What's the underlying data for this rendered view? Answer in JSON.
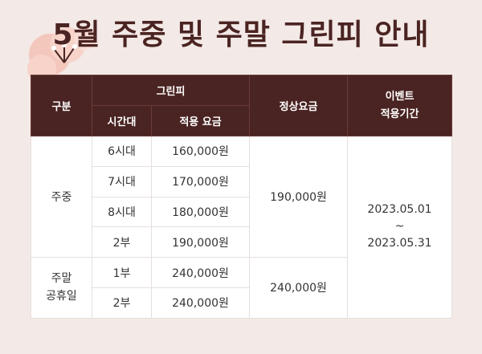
{
  "title": "5월 주중 및 주말 그린피 안내",
  "colors": {
    "header_bg": "#4a2422",
    "accent": "#e05a3d",
    "background": "#f3e9e6"
  },
  "table": {
    "headers": {
      "category": "구분",
      "greenfee": "그린피",
      "timeslot": "시간대",
      "applied_fee": "적용 요금",
      "regular_fee": "정상요금",
      "event_line1": "이벤트",
      "event_line2": "적용기간"
    },
    "weekday": {
      "label": "주중",
      "regular_fee": "190,000원",
      "rows": [
        {
          "slot": "6시대",
          "fee": "160,000원"
        },
        {
          "slot": "7시대",
          "fee": "170,000원"
        },
        {
          "slot": "8시대",
          "fee": "180,000원"
        },
        {
          "slot": "2부",
          "fee": "190,000원"
        }
      ]
    },
    "weekend": {
      "label_line1": "주말",
      "label_line2": "공휴일",
      "regular_fee": "240,000원",
      "rows": [
        {
          "slot": "1부",
          "fee": "240,000원"
        },
        {
          "slot": "2부",
          "fee": "240,000원"
        }
      ]
    },
    "event_period": {
      "start": "2023.05.01",
      "separator": "~",
      "end": "2023.05.31"
    }
  }
}
